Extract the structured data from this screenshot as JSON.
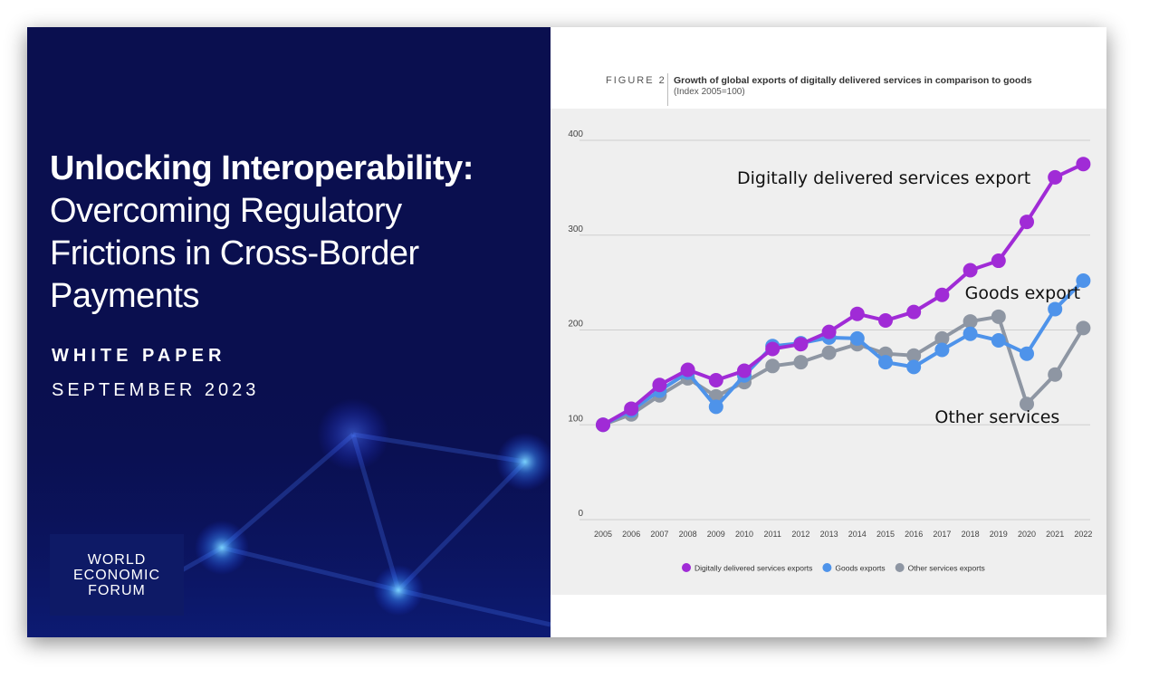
{
  "cover": {
    "title_bold": "Unlocking Interoperability:",
    "title_lines": [
      "Overcoming Regulatory",
      "Frictions in Cross-Border",
      "Payments"
    ],
    "doc_type": "WHITE PAPER",
    "date": "SEPTEMBER 2023",
    "logo_lines": [
      "WORLD",
      "ECONOMIC",
      "FORUM"
    ]
  },
  "figure": {
    "tag": "FIGURE 2",
    "title": "Growth of global exports of digitally delivered services in comparison to goods",
    "subtitle": "(Index 2005=100)"
  },
  "chart_data": {
    "type": "line",
    "x": [
      "2005",
      "2006",
      "2007",
      "2008",
      "2009",
      "2010",
      "2011",
      "2012",
      "2013",
      "2014",
      "2015",
      "2016",
      "2017",
      "2018",
      "2019",
      "2020",
      "2021",
      "2022"
    ],
    "ylim": [
      0,
      400
    ],
    "yticks": [
      0,
      100,
      200,
      300,
      400
    ],
    "grid": true,
    "legend_position": "bottom",
    "series": [
      {
        "name": "Digitally delivered services exports",
        "color": "#a02bd6",
        "values": [
          100,
          117,
          142,
          158,
          147,
          157,
          180,
          185,
          198,
          217,
          210,
          219,
          237,
          263,
          273,
          314,
          361,
          375
        ]
      },
      {
        "name": "Goods exports",
        "color": "#4e93ea",
        "values": [
          100,
          115,
          136,
          155,
          119,
          152,
          183,
          186,
          192,
          191,
          166,
          161,
          179,
          196,
          189,
          175,
          222,
          252
        ]
      },
      {
        "name": "Other services exports",
        "color": "#8e96a3",
        "values": [
          100,
          111,
          131,
          149,
          130,
          145,
          162,
          166,
          176,
          185,
          175,
          173,
          191,
          209,
          214,
          122,
          153,
          202
        ]
      }
    ],
    "annotations": [
      {
        "text": "Digitally delivered services export",
        "x": "2010",
        "y": 354
      },
      {
        "text": "Goods export",
        "x": "2018",
        "y": 233
      },
      {
        "text": "Other services",
        "x": "2017",
        "y": 102
      }
    ]
  }
}
